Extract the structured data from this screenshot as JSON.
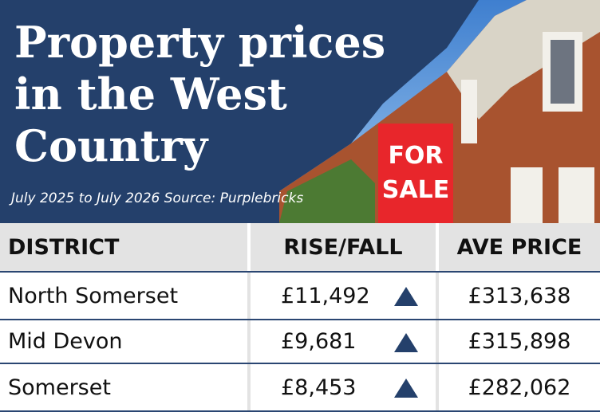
{
  "header": {
    "title_lines": [
      "Property prices",
      "in the West",
      "Country"
    ],
    "subtitle": "July 2025 to July 2026 Source: Purplebricks",
    "sign_lines": [
      "FOR",
      "SALE"
    ]
  },
  "table": {
    "columns": [
      "DISTRICT",
      "RISE/FALL",
      "AVE PRICE"
    ],
    "rows": [
      [
        "North Somerset",
        "£11,492",
        "£313,638"
      ],
      [
        "Mid Devon",
        "£9,681",
        "£315,898"
      ],
      [
        "Somerset",
        "£8,453",
        "£282,062"
      ]
    ]
  }
}
